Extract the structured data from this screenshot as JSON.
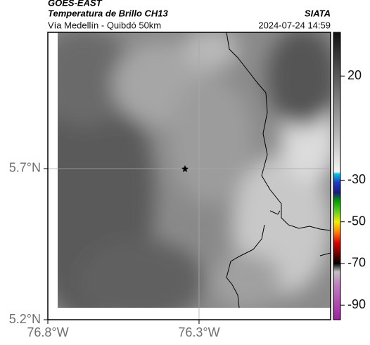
{
  "header": {
    "satellite": "GOES-EAST",
    "product": "Temperatura de Brillo CH13",
    "route": "Vía Medellín - Quibdó 50km",
    "source": "SIATA",
    "datetime": "2024-07-24 14:59"
  },
  "map": {
    "xlim": [
      -76.8,
      -75.865
    ],
    "ylim": [
      5.2,
      6.151
    ],
    "xticks": [
      {
        "value": -76.8,
        "label": "76.8°W"
      },
      {
        "value": -76.3,
        "label": "76.3°W"
      }
    ],
    "yticks": [
      {
        "value": 5.7,
        "label": "5.7°N"
      },
      {
        "value": 5.2,
        "label": "5.2°N"
      }
    ],
    "grid": true
  },
  "colorbar": {
    "clim": [
      -97,
      41
    ],
    "ticks": [
      20,
      -30,
      -50,
      -70,
      -90
    ],
    "stops": [
      {
        "value": 41,
        "color": "#111111"
      },
      {
        "value": -26,
        "color": "#f5f5f5"
      },
      {
        "value": -27,
        "color": "#00c8e0"
      },
      {
        "value": -31,
        "color": "#1e3cc8"
      },
      {
        "value": -36,
        "color": "#1a1a80"
      },
      {
        "value": -40,
        "color": "#00a000"
      },
      {
        "value": -45,
        "color": "#60d020"
      },
      {
        "value": -50,
        "color": "#f0f000"
      },
      {
        "value": -55,
        "color": "#ff8000"
      },
      {
        "value": -60,
        "color": "#e00000"
      },
      {
        "value": -66,
        "color": "#600000"
      },
      {
        "value": -70,
        "color": "#000000"
      },
      {
        "value": -74,
        "color": "#c0c0c0"
      },
      {
        "value": -80,
        "color": "#c080c0"
      },
      {
        "value": -97,
        "color": "#a020a0"
      }
    ]
  }
}
